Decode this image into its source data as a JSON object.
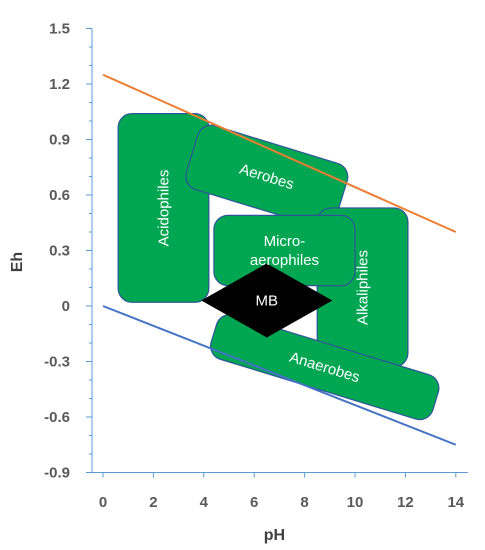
{
  "chart_data": {
    "type": "line",
    "title": "",
    "xlabel": "pH",
    "ylabel": "Eh",
    "xlim": [
      -0.8,
      14.2
    ],
    "ylim": [
      -0.9,
      1.5
    ],
    "x_ticks": [
      0,
      2,
      4,
      6,
      8,
      10,
      12,
      14
    ],
    "y_ticks": [
      1.5,
      1.2,
      0.9,
      0.6,
      0.3,
      0,
      -0.3,
      -0.6,
      -0.9
    ],
    "x_tick_labels": [
      "0",
      "2",
      "4",
      "6",
      "8",
      "10",
      "12",
      "14"
    ],
    "y_tick_labels": [
      "1.5",
      "1.2",
      "0.9",
      "0.6",
      "0.3",
      "0",
      "-0.3",
      "-0.6",
      "-0.9"
    ],
    "grid": false,
    "series": [
      {
        "color": "#ED7D31",
        "x": [
          0,
          14
        ],
        "y": [
          1.25,
          0.4
        ]
      },
      {
        "color": "#4472C4",
        "x": [
          0,
          14
        ],
        "y": [
          0,
          -0.75
        ]
      }
    ],
    "regions": [
      {
        "id": "acidophiles",
        "lines": [
          "Acidophiles"
        ],
        "color": "#00A651",
        "shape": "rect",
        "cx": 2.4,
        "cy": 0.53,
        "w": 3.6,
        "h": 1.02,
        "angle": 0,
        "text_angle": -90
      },
      {
        "id": "aerobes",
        "lines": [
          "Aerobes"
        ],
        "color": "#00A651",
        "shape": "rect",
        "cx": 6.5,
        "cy": 0.7,
        "w": 6.2,
        "h": 0.36,
        "angle": 17,
        "text_angle": 17
      },
      {
        "id": "alkaliphiles",
        "lines": [
          "Alkaliphiles"
        ],
        "color": "#00A651",
        "shape": "rect",
        "cx": 10.3,
        "cy": 0.1,
        "w": 3.6,
        "h": 0.86,
        "angle": 0,
        "text_angle": -90
      },
      {
        "id": "anaerobes",
        "lines": [
          "Anaerobes"
        ],
        "color": "#00A651",
        "shape": "rect",
        "cx": 8.8,
        "cy": -0.33,
        "w": 9.2,
        "h": 0.25,
        "angle": 17,
        "text_angle": 17
      },
      {
        "id": "micro-aerophiles",
        "lines": [
          "Micro-",
          "aerophiles"
        ],
        "color": "#00A651",
        "shape": "rect",
        "cx": 7.2,
        "cy": 0.3,
        "w": 5.6,
        "h": 0.38,
        "angle": 0,
        "text_angle": 0
      },
      {
        "id": "mb",
        "lines": [
          "MB"
        ],
        "color": "#000000",
        "shape": "diamond",
        "cx": 6.5,
        "cy": 0.03,
        "w": 5.2,
        "h": 0.4,
        "angle": 0,
        "text_angle": 0
      }
    ]
  }
}
